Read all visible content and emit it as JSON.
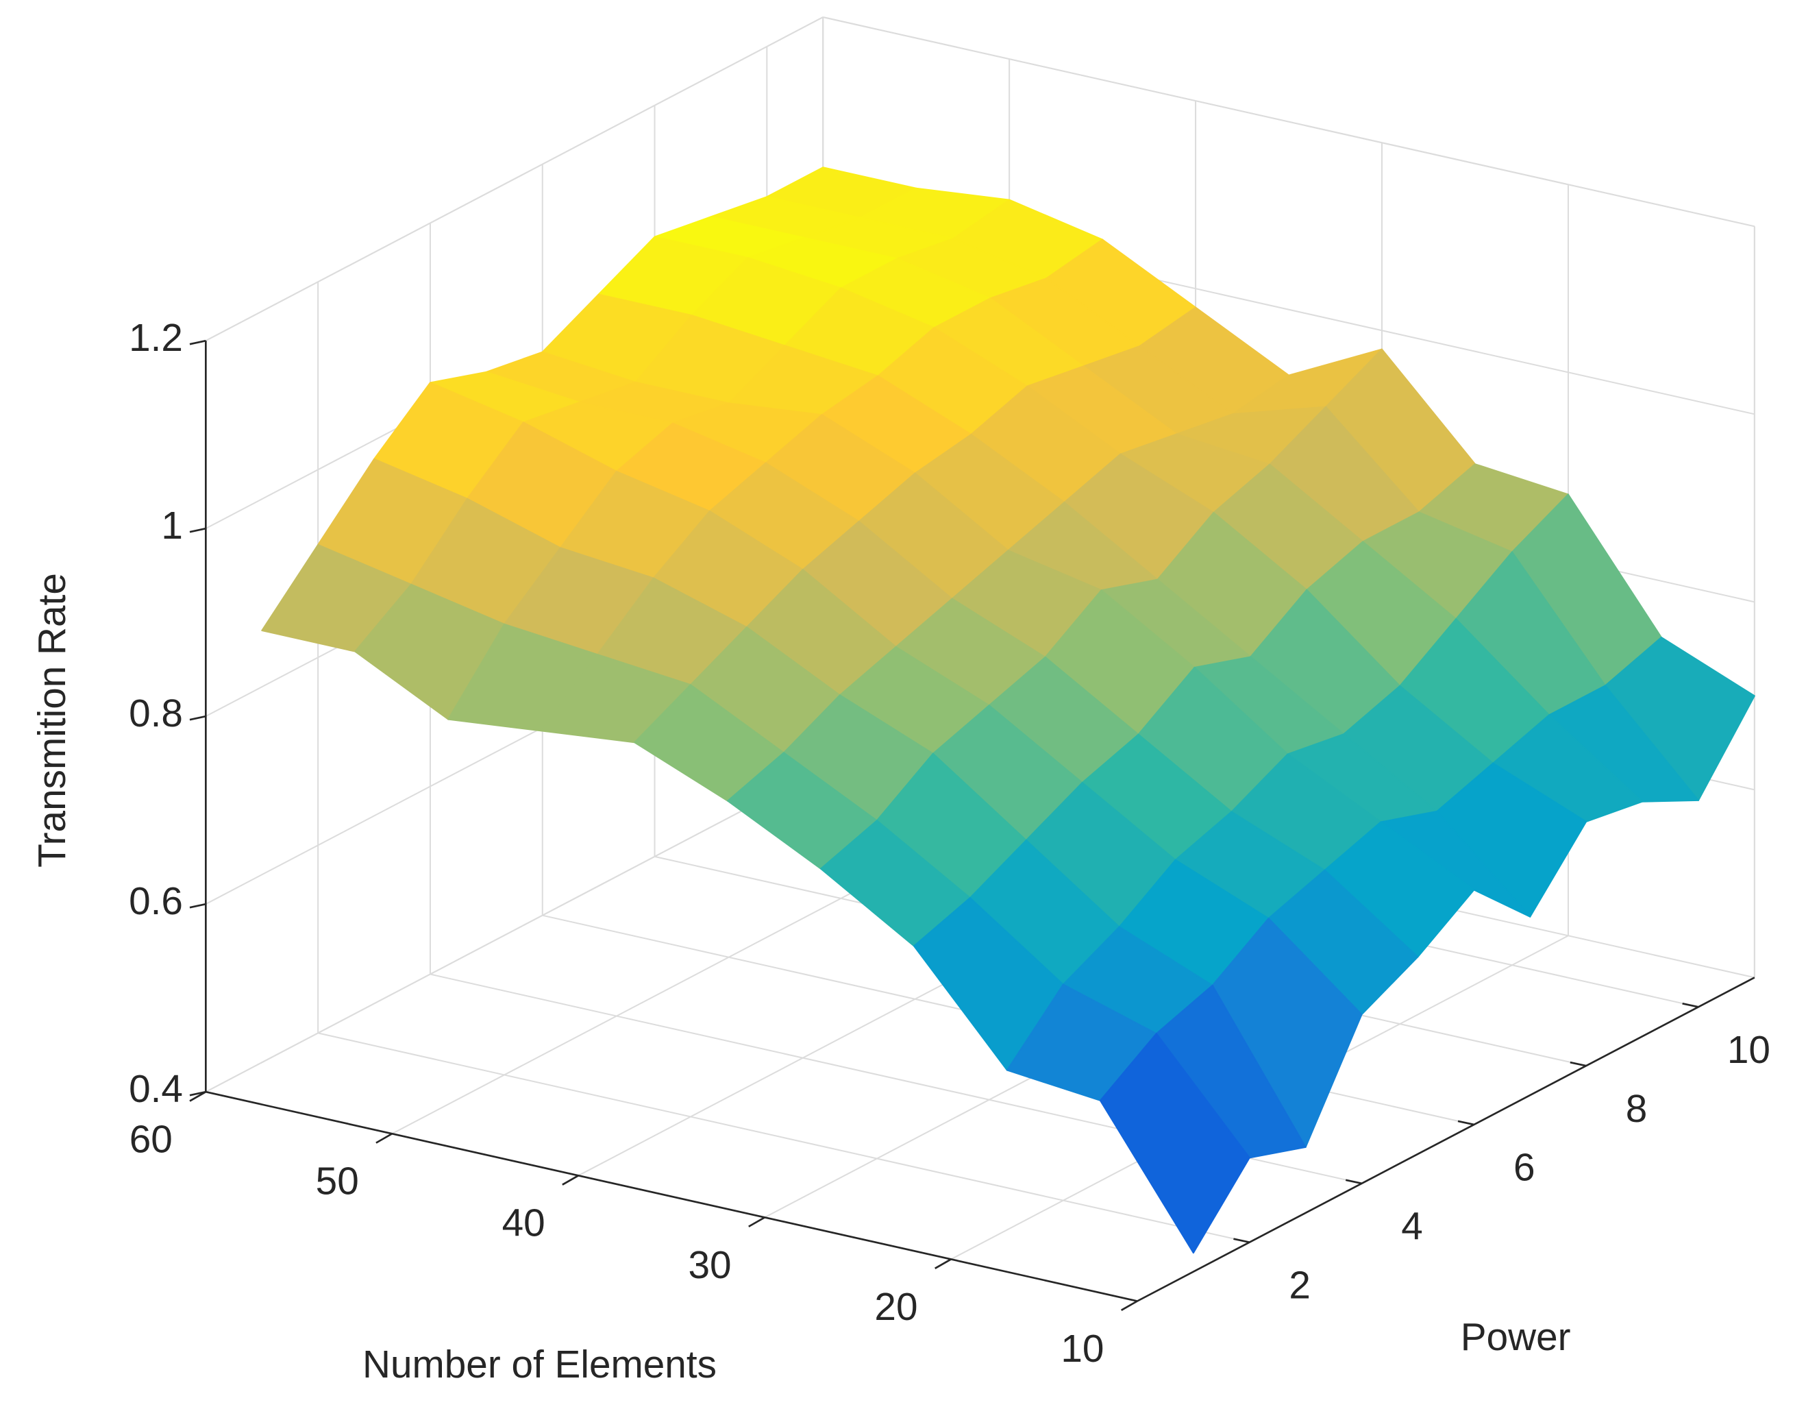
{
  "chart_data": {
    "type": "surface",
    "xlabel": "Number of Elements",
    "ylabel": "Power",
    "zlabel": "Transmition Rate",
    "x": [
      10,
      15,
      20,
      25,
      30,
      35,
      40,
      45,
      50,
      55,
      60
    ],
    "y": [
      1,
      2,
      3,
      4,
      5,
      6,
      7,
      8,
      9,
      10,
      11
    ],
    "z": [
      [
        0.42,
        0.49,
        0.47,
        0.58,
        0.61,
        0.65,
        0.59,
        0.66,
        0.65,
        0.62,
        0.7
      ],
      [
        0.56,
        0.6,
        0.62,
        0.66,
        0.68,
        0.7,
        0.68,
        0.7,
        0.72,
        0.72,
        0.74
      ],
      [
        0.57,
        0.63,
        0.66,
        0.7,
        0.72,
        0.75,
        0.74,
        0.76,
        0.8,
        0.84,
        0.87
      ],
      [
        0.68,
        0.7,
        0.73,
        0.76,
        0.78,
        0.82,
        0.8,
        0.84,
        0.86,
        0.86,
        0.88
      ],
      [
        0.74,
        0.76,
        0.8,
        0.82,
        0.84,
        0.88,
        0.86,
        0.9,
        0.92,
        0.95,
        0.98
      ],
      [
        0.79,
        0.81,
        0.84,
        0.86,
        0.88,
        0.9,
        0.92,
        0.94,
        0.93,
        0.92,
        0.93
      ],
      [
        0.83,
        0.86,
        0.89,
        0.92,
        0.94,
        0.96,
        0.97,
        0.99,
        0.98,
        0.97,
        0.98
      ],
      [
        0.82,
        0.87,
        0.92,
        0.96,
        0.98,
        1.0,
        1.01,
        1.03,
        1.03,
        1.02,
        1.03
      ],
      [
        0.81,
        0.88,
        0.93,
        0.98,
        1.0,
        0.99,
        1.02,
        1.05,
        1.05,
        1.04,
        1.05
      ],
      [
        0.86,
        0.9,
        0.96,
        1.01,
        1.0,
        0.99,
        1.03,
        1.06,
        1.05,
        1.04,
        1.04
      ],
      [
        0.86,
        0.92,
        0.98,
        1.03,
        1.01,
        1.0,
        1.03,
        1.06,
        1.05,
        1.04,
        1.04
      ]
    ],
    "xlim": [
      10,
      60
    ],
    "ylim": [
      0,
      11
    ],
    "zlim": [
      0.4,
      1.2
    ],
    "xticks": [
      10,
      20,
      30,
      40,
      50,
      60
    ],
    "yticks": [
      2,
      4,
      6,
      8,
      10
    ],
    "zticks": [
      0.4,
      0.6,
      0.8,
      1,
      1.2
    ],
    "grid": true,
    "colormap": "parula"
  }
}
